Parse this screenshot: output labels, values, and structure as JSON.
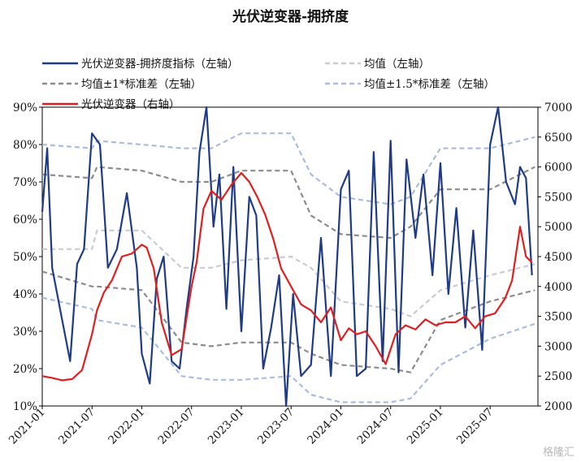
{
  "chart_data": {
    "type": "line",
    "title": "光伏逆变器-拥挤度",
    "x_tick_labels": [
      "2021-01",
      "2021-07",
      "2022-01",
      "2022-07",
      "2023-01",
      "2023-07",
      "2024-01",
      "2024-07",
      "2025-01",
      "2025-07"
    ],
    "ylim_left": [
      0.1,
      0.9
    ],
    "y_ticks_left": [
      "10%",
      "20%",
      "30%",
      "40%",
      "50%",
      "60%",
      "70%",
      "80%",
      "90%"
    ],
    "ylim_right": [
      2000,
      7000
    ],
    "y_ticks_right": [
      "2000",
      "2500",
      "3000",
      "3500",
      "4000",
      "4500",
      "5000",
      "5500",
      "6000",
      "6500",
      "7000"
    ],
    "legend": [
      {
        "label": "光伏逆变器-拥挤度指标（左轴）",
        "color": "#1f3b87",
        "dash": "solid"
      },
      {
        "label": "均值（左轴）",
        "color": "#c9ccd6",
        "dash": "dashed"
      },
      {
        "label": "均值±1*标准差（左轴）",
        "color": "#8c8c8c",
        "dash": "dashed"
      },
      {
        "label": "均值±1.5*标准差（左轴）",
        "color": "#a9bde0",
        "dash": "dashed"
      },
      {
        "label": "光伏逆变器（右轴）",
        "color": "#e02020",
        "dash": "solid"
      }
    ],
    "series": [
      {
        "name": "光伏逆变器-拥挤度指标（左轴）",
        "axis": "left",
        "x": [
          2021.0,
          2021.05,
          2021.1,
          2021.2,
          2021.28,
          2021.35,
          2021.42,
          2021.5,
          2021.58,
          2021.66,
          2021.75,
          2021.85,
          2021.95,
          2022.0,
          2022.08,
          2022.15,
          2022.22,
          2022.3,
          2022.38,
          2022.45,
          2022.52,
          2022.58,
          2022.65,
          2022.72,
          2022.78,
          2022.85,
          2022.92,
          2023.0,
          2023.08,
          2023.15,
          2023.22,
          2023.3,
          2023.38,
          2023.45,
          2023.52,
          2023.6,
          2023.7,
          2023.8,
          2023.9,
          2024.0,
          2024.08,
          2024.16,
          2024.25,
          2024.33,
          2024.42,
          2024.5,
          2024.58,
          2024.66,
          2024.75,
          2024.83,
          2024.92,
          2025.0,
          2025.08,
          2025.16,
          2025.25,
          2025.33,
          2025.42,
          2025.5,
          2025.58,
          2025.66,
          2025.75,
          2025.8,
          2025.86,
          2025.92
        ],
        "values": [
          0.62,
          0.79,
          0.47,
          0.33,
          0.22,
          0.48,
          0.52,
          0.83,
          0.8,
          0.47,
          0.52,
          0.67,
          0.47,
          0.24,
          0.16,
          0.44,
          0.5,
          0.22,
          0.2,
          0.36,
          0.5,
          0.78,
          0.9,
          0.58,
          0.72,
          0.36,
          0.74,
          0.3,
          0.66,
          0.61,
          0.2,
          0.31,
          0.45,
          0.1,
          0.4,
          0.18,
          0.21,
          0.55,
          0.18,
          0.68,
          0.73,
          0.18,
          0.2,
          0.78,
          0.22,
          0.81,
          0.19,
          0.76,
          0.55,
          0.72,
          0.45,
          0.75,
          0.4,
          0.63,
          0.31,
          0.57,
          0.25,
          0.8,
          0.9,
          0.7,
          0.64,
          0.74,
          0.71,
          0.45
        ]
      },
      {
        "name": "均值（左轴）",
        "axis": "left",
        "x": [
          2021.0,
          2021.5,
          2021.55,
          2022.0,
          2022.4,
          2022.7,
          2023.0,
          2023.5,
          2023.7,
          2024.0,
          2024.5,
          2024.7,
          2025.0,
          2025.5,
          2025.95
        ],
        "values": [
          0.52,
          0.52,
          0.57,
          0.57,
          0.47,
          0.47,
          0.49,
          0.5,
          0.47,
          0.38,
          0.36,
          0.34,
          0.41,
          0.45,
          0.48
        ]
      },
      {
        "name": "均值+1*标准差（左轴）",
        "axis": "left",
        "x": [
          2021.0,
          2021.5,
          2021.55,
          2022.0,
          2022.4,
          2022.7,
          2023.0,
          2023.5,
          2023.7,
          2024.0,
          2024.5,
          2024.7,
          2025.0,
          2025.5,
          2025.95
        ],
        "values": [
          0.72,
          0.71,
          0.74,
          0.73,
          0.7,
          0.7,
          0.73,
          0.73,
          0.61,
          0.56,
          0.55,
          0.58,
          0.68,
          0.68,
          0.74
        ]
      },
      {
        "name": "均值-1*标准差（左轴）",
        "axis": "left",
        "x": [
          2021.0,
          2021.5,
          2021.55,
          2022.0,
          2022.4,
          2022.7,
          2023.0,
          2023.5,
          2023.7,
          2024.0,
          2024.5,
          2024.7,
          2025.0,
          2025.5,
          2025.95
        ],
        "values": [
          0.46,
          0.42,
          0.42,
          0.41,
          0.27,
          0.26,
          0.27,
          0.27,
          0.24,
          0.21,
          0.2,
          0.19,
          0.33,
          0.38,
          0.41
        ]
      },
      {
        "name": "均值+1.5*标准差（左轴）",
        "axis": "left",
        "x": [
          2021.0,
          2021.5,
          2021.55,
          2022.0,
          2022.4,
          2022.7,
          2023.0,
          2023.5,
          2023.7,
          2024.0,
          2024.5,
          2024.7,
          2025.0,
          2025.5,
          2025.95
        ],
        "values": [
          0.8,
          0.79,
          0.81,
          0.8,
          0.79,
          0.79,
          0.83,
          0.83,
          0.72,
          0.66,
          0.64,
          0.66,
          0.79,
          0.79,
          0.82
        ]
      },
      {
        "name": "均值-1.5*标准差（左轴）",
        "axis": "left",
        "x": [
          2021.0,
          2021.5,
          2021.55,
          2022.0,
          2022.4,
          2022.7,
          2023.0,
          2023.5,
          2023.7,
          2024.0,
          2024.5,
          2024.7,
          2025.0,
          2025.5,
          2025.95
        ],
        "values": [
          0.39,
          0.36,
          0.33,
          0.31,
          0.18,
          0.17,
          0.17,
          0.18,
          0.13,
          0.11,
          0.11,
          0.12,
          0.21,
          0.28,
          0.32
        ]
      },
      {
        "name": "光伏逆变器（右轴）",
        "axis": "right",
        "x": [
          2021.0,
          2021.1,
          2021.2,
          2021.3,
          2021.4,
          2021.5,
          2021.55,
          2021.62,
          2021.7,
          2021.8,
          2021.9,
          2022.0,
          2022.05,
          2022.12,
          2022.2,
          2022.3,
          2022.4,
          2022.5,
          2022.55,
          2022.62,
          2022.7,
          2022.8,
          2022.9,
          2023.0,
          2023.08,
          2023.16,
          2023.24,
          2023.32,
          2023.4,
          2023.5,
          2023.6,
          2023.7,
          2023.8,
          2023.9,
          2024.0,
          2024.08,
          2024.16,
          2024.25,
          2024.35,
          2024.45,
          2024.55,
          2024.65,
          2024.75,
          2024.85,
          2024.95,
          2025.05,
          2025.15,
          2025.25,
          2025.35,
          2025.45,
          2025.55,
          2025.65,
          2025.72,
          2025.8,
          2025.86,
          2025.92
        ],
        "values": [
          2500,
          2470,
          2430,
          2450,
          2600,
          3200,
          3600,
          3900,
          4100,
          4500,
          4550,
          4700,
          4650,
          4300,
          3400,
          2850,
          2950,
          4000,
          4400,
          5300,
          5600,
          5450,
          5700,
          5900,
          5750,
          5500,
          5200,
          4800,
          4300,
          4000,
          3700,
          3600,
          3400,
          3650,
          3100,
          3300,
          3200,
          3250,
          3000,
          2700,
          3200,
          3350,
          3280,
          3450,
          3350,
          3400,
          3400,
          3500,
          3300,
          3500,
          3550,
          3800,
          4100,
          5000,
          4500,
          4400
        ]
      }
    ]
  }
}
